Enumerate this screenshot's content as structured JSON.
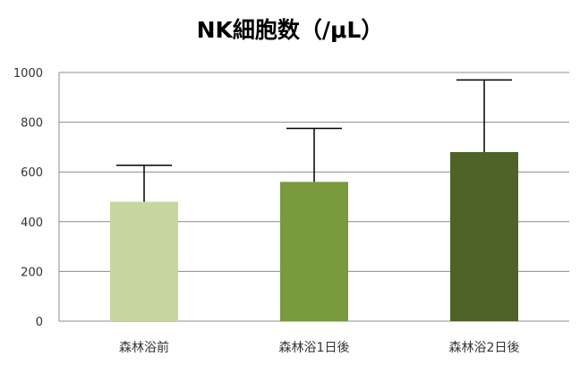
{
  "chart_data": {
    "type": "bar",
    "title": "NK細胞数（/μL）",
    "categories": [
      "森林浴前",
      "森林浴1日後",
      "森林浴2日後"
    ],
    "values": [
      480,
      560,
      680
    ],
    "error_plus": [
      147,
      215,
      290
    ],
    "colors": [
      "#c5d79e",
      "#7a9a3e",
      "#4f6329"
    ],
    "ylim": [
      0,
      1000
    ],
    "yticks": [
      0,
      200,
      400,
      600,
      800,
      1000
    ],
    "grid": true,
    "legend": "none"
  }
}
